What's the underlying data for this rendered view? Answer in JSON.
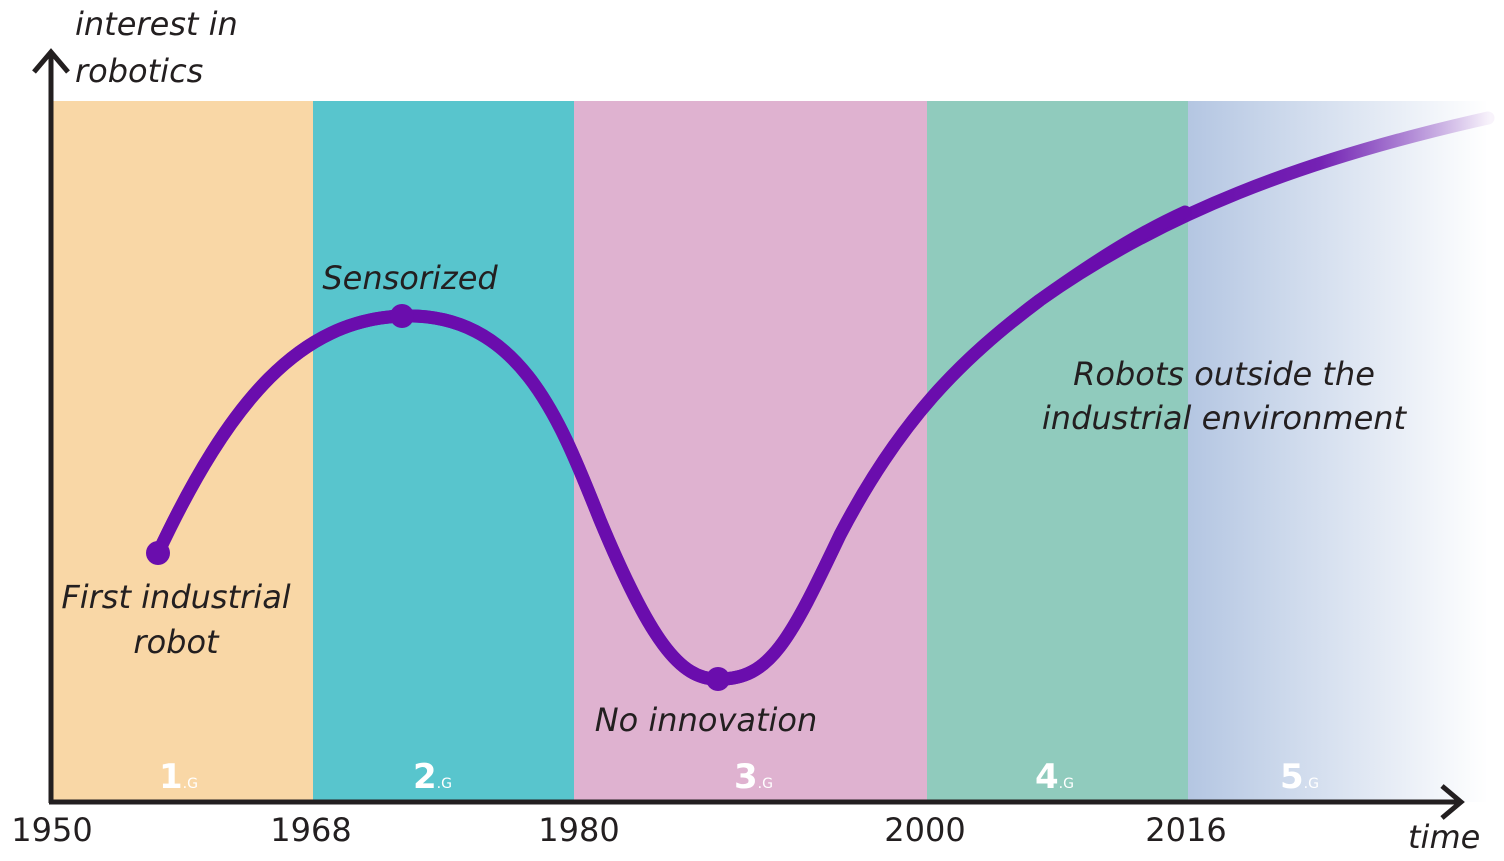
{
  "axes": {
    "y_label_line1": "interest in",
    "y_label_line2": "robotics",
    "x_label": "time"
  },
  "ticks": [
    "1950",
    "1968",
    "1980",
    "2000",
    "2016"
  ],
  "generations": [
    {
      "number": "1",
      "suffix": ".G",
      "color": "#f9d7a6"
    },
    {
      "number": "2",
      "suffix": ".G",
      "color": "#58c5cd"
    },
    {
      "number": "3",
      "suffix": ".G",
      "color": "#dfb2d0"
    },
    {
      "number": "4",
      "suffix": ".G",
      "color": "#90cbbd"
    },
    {
      "number": "5",
      "suffix": ".G",
      "color": "#b4c6e2"
    }
  ],
  "annotations": {
    "first_line1": "First industrial",
    "first_line2": "robot",
    "sensorized": "Sensorized",
    "no_innovation": "No innovation",
    "outside_line1": "Robots outside the",
    "outside_line2": "industrial environment"
  },
  "colors": {
    "curve": "#6a0dad",
    "axis": "#231f20"
  }
}
